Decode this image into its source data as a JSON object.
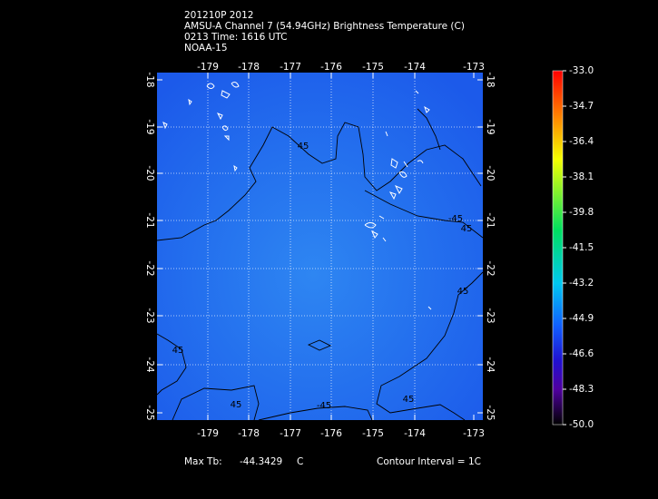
{
  "header": {
    "lines": [
      "201210P 2012",
      "AMSU-A Channel 7 (54.94GHz) Brightness Temperature (C)",
      "0213 Time: 1616 UTC",
      "NOAA-15"
    ]
  },
  "map": {
    "top_labels": [
      "-179",
      "-178",
      "-177",
      "-176",
      "-175",
      "-174",
      "-173"
    ],
    "bottom_labels": [
      "-179",
      "-178",
      "-177",
      "-176",
      "-175",
      "-174",
      "-173"
    ],
    "left_labels": [
      "-18",
      "-19",
      "-20",
      "-21",
      "-22",
      "-23",
      "-24",
      "-25"
    ],
    "right_labels": [
      "-18",
      "-19",
      "-20",
      "-21",
      "-22",
      "-23",
      "-24",
      "-25"
    ],
    "contour_labels": [
      "45",
      "45",
      "45",
      "-45",
      "45",
      "45",
      "-45",
      "45"
    ]
  },
  "colorbar": {
    "labels": [
      "-33.0",
      "-34.7",
      "-36.4",
      "-38.1",
      "-39.8",
      "-41.5",
      "-43.2",
      "-44.9",
      "-46.6",
      "-48.3",
      "-50.0"
    ]
  },
  "footer": {
    "max_label": "Max Tb:",
    "max_value": "-44.3429",
    "unit": "C",
    "interval": "Contour Interval = 1C"
  }
}
